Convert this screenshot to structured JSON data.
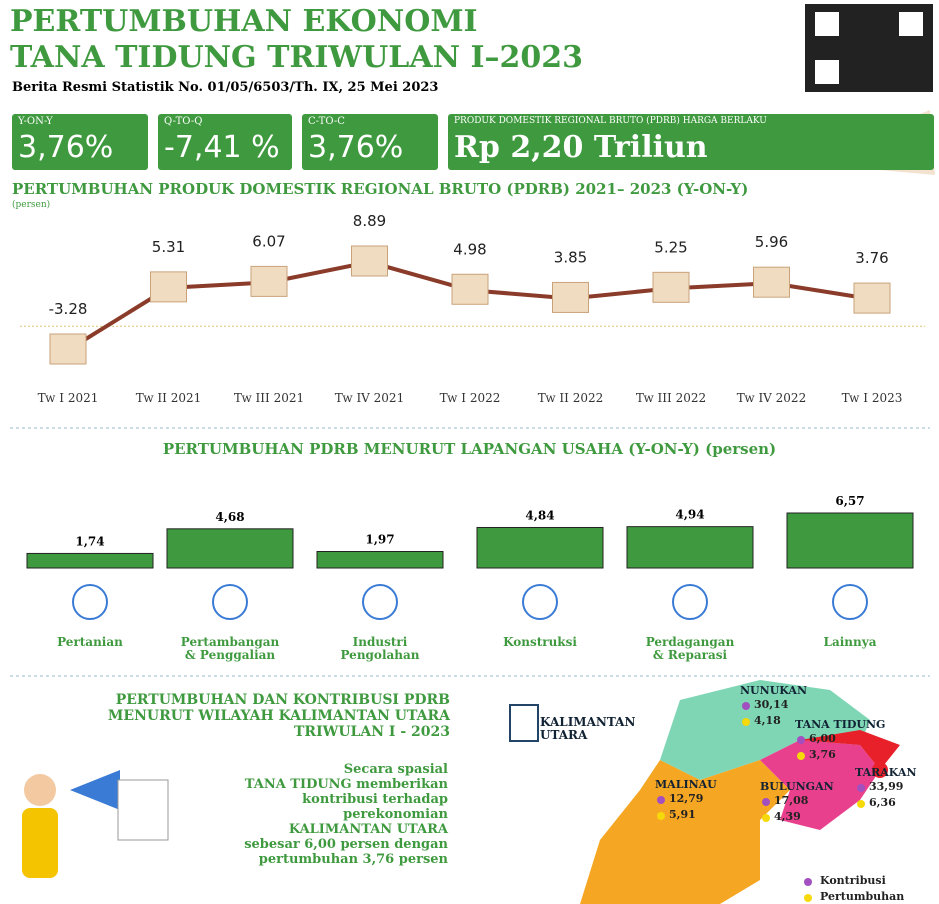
{
  "header": {
    "title_1": "PERTUMBUHAN EKONOMI",
    "title_2": "TANA TIDUNG TRIWULAN I–2023",
    "subtitle": "Berita Resmi Statistik No. 01/05/6503/Th. IX, 25 Mei 2023"
  },
  "kpis": [
    {
      "label": "Y-ON-Y",
      "value": "3,76%"
    },
    {
      "label": "Q-TO-Q",
      "value": "-7,41 %"
    },
    {
      "label": "C-TO-C",
      "value": "3,76%"
    },
    {
      "label": "PRODUK DOMESTIK REGIONAL BRUTO (PDRB) HARGA BERLAKU",
      "value": "Rp 2,20 Triliun"
    }
  ],
  "chart_data": [
    {
      "type": "line",
      "title": "PERTUMBUHAN PRODUK DOMESTIK REGIONAL BRUTO (PDRB) 2021– 2023 (Y-ON-Y)",
      "y_label": "(persen)",
      "categories": [
        "Tw I 2021",
        "Tw II 2021",
        "Tw III 2021",
        "Tw IV 2021",
        "Tw I 2022",
        "Tw II 2022",
        "Tw III 2022",
        "Tw IV 2022",
        "Tw I 2023"
      ],
      "values": [
        -3.28,
        5.31,
        6.07,
        8.89,
        4.98,
        3.85,
        5.25,
        5.96,
        3.76
      ],
      "color": "#8a3b2a"
    },
    {
      "type": "bar",
      "title": "PERTUMBUHAN PDRB MENURUT LAPANGAN USAHA (Y-ON-Y) (persen)",
      "categories": [
        "Pertanian",
        "Pertambangan\n& Penggalian",
        "Industri\nPengolahan",
        "Konstruksi",
        "Perdagangan\n& Reparasi",
        "Lainnya"
      ],
      "values": [
        1.74,
        4.68,
        1.97,
        4.84,
        4.94,
        6.57
      ],
      "value_labels": [
        "1,74",
        "4,68",
        "1,97",
        "4,84",
        "4,94",
        "6,57"
      ],
      "color": "#3f9a3f"
    }
  ],
  "region": {
    "title": "PERTUMBUHAN DAN KONTRIBUSI PDRB\nMENURUT WILAYAH KALIMANTAN UTARA\nTRIWULAN I - 2023",
    "text": "Secara spasial\nTANA TIDUNG memberikan\nkontribusi terhadap\nperekonomian\nKALIMANTAN UTARA\nsebesar 6,00 persen dengan\npertumbuhan 3,76 persen",
    "map_label": "KALIMANTAN\nUTARA",
    "areas": [
      {
        "name": "NUNUKAN",
        "kontribusi": "30,14",
        "pertumbuhan": "4,18"
      },
      {
        "name": "TANA TIDUNG",
        "kontribusi": "6,00",
        "pertumbuhan": "3,76"
      },
      {
        "name": "TARAKAN",
        "kontribusi": "33,99",
        "pertumbuhan": "6,36"
      },
      {
        "name": "MALINAU",
        "kontribusi": "12,79",
        "pertumbuhan": "5,91"
      },
      {
        "name": "BULUNGAN",
        "kontribusi": "17,08",
        "pertumbuhan": "4,39"
      }
    ],
    "legend": [
      "Kontribusi",
      "Pertumbuhan"
    ]
  }
}
